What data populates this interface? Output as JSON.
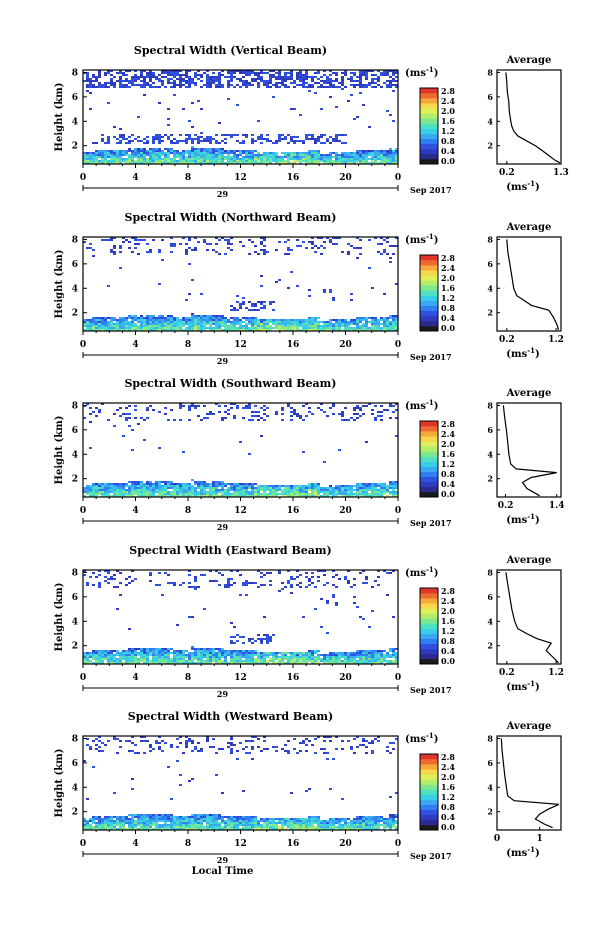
{
  "figure": {
    "xlabel": "Local Time",
    "date_label": "Sep 2017",
    "day_label": "29",
    "ylabel": "Height (km)",
    "unit_label": "(ms",
    "unit_exp": "-1",
    "avg_title": "Average",
    "avg_xlabel": "(ms",
    "avg_xlabel_exp": "-1"
  },
  "colorbar": {
    "ticks": [
      "2.8",
      "2.4",
      "2.0",
      "1.6",
      "1.2",
      "0.8",
      "0.4",
      "0.0"
    ],
    "colors": [
      "#1a1a1a",
      "#2b2b8f",
      "#2f3bbf",
      "#3050e0",
      "#2f7ff0",
      "#39a9f2",
      "#36cfe6",
      "#4fe0c0",
      "#7fe88f",
      "#b3ee6a",
      "#dff05a",
      "#f7d84a",
      "#f7a83a",
      "#ef6a2e",
      "#e0352a"
    ]
  },
  "chart_data": [
    {
      "type": "heatmap",
      "title": "Spectral Width (Vertical Beam)",
      "xlabel": "Local Time",
      "ylabel": "Height (km)",
      "x_ticks": [
        "0",
        "4",
        "8",
        "12",
        "16",
        "20",
        "0"
      ],
      "y_ticks": [
        "8",
        "6",
        "4",
        "2"
      ],
      "xlim": [
        0,
        24
      ],
      "ylim": [
        0.5,
        8.2
      ],
      "colorbar_unit": "ms-1",
      "colorbar_range": [
        0.0,
        2.8
      ],
      "average_profile": {
        "xlim": [
          0.0,
          1.3
        ],
        "x_ticks": [
          "0.2",
          "1.3"
        ],
        "y_ticks": [
          "8",
          "6",
          "4",
          "2"
        ],
        "points": [
          [
            0.18,
            8.0
          ],
          [
            0.2,
            7.2
          ],
          [
            0.21,
            6.4
          ],
          [
            0.24,
            5.6
          ],
          [
            0.25,
            4.8
          ],
          [
            0.28,
            4.0
          ],
          [
            0.3,
            3.6
          ],
          [
            0.34,
            3.2
          ],
          [
            0.42,
            2.8
          ],
          [
            0.6,
            2.4
          ],
          [
            0.78,
            2.0
          ],
          [
            0.92,
            1.6
          ],
          [
            1.05,
            1.2
          ],
          [
            1.18,
            0.8
          ],
          [
            1.28,
            0.6
          ]
        ]
      }
    },
    {
      "type": "heatmap",
      "title": "Spectral Width (Northward Beam)",
      "xlabel": "Local Time",
      "ylabel": "Height (km)",
      "x_ticks": [
        "0",
        "4",
        "8",
        "12",
        "16",
        "20",
        "0"
      ],
      "y_ticks": [
        "8",
        "6",
        "4",
        "2"
      ],
      "xlim": [
        0,
        24
      ],
      "ylim": [
        0.5,
        8.2
      ],
      "colorbar_unit": "ms-1",
      "colorbar_range": [
        0.0,
        2.8
      ],
      "average_profile": {
        "xlim": [
          0.0,
          1.3
        ],
        "x_ticks": [
          "0.2",
          "1.2"
        ],
        "y_ticks": [
          "8",
          "6",
          "4",
          "2"
        ],
        "points": [
          [
            0.2,
            8.0
          ],
          [
            0.22,
            7.0
          ],
          [
            0.26,
            6.0
          ],
          [
            0.3,
            5.0
          ],
          [
            0.34,
            4.0
          ],
          [
            0.4,
            3.4
          ],
          [
            0.55,
            3.0
          ],
          [
            0.7,
            2.6
          ],
          [
            1.05,
            2.2
          ],
          [
            1.15,
            1.6
          ],
          [
            1.22,
            1.0
          ],
          [
            1.25,
            0.6
          ]
        ]
      }
    },
    {
      "type": "heatmap",
      "title": "Spectral Width (Southward Beam)",
      "xlabel": "Local Time",
      "ylabel": "Height (km)",
      "x_ticks": [
        "0",
        "4",
        "8",
        "12",
        "16",
        "20",
        "0"
      ],
      "y_ticks": [
        "8",
        "6",
        "4",
        "2"
      ],
      "xlim": [
        0,
        24
      ],
      "ylim": [
        0.5,
        8.2
      ],
      "colorbar_unit": "ms-1",
      "colorbar_range": [
        0.0,
        2.8
      ],
      "average_profile": {
        "xlim": [
          0.0,
          1.5
        ],
        "x_ticks": [
          "0.2",
          "1.4"
        ],
        "y_ticks": [
          "8",
          "6",
          "4",
          "2"
        ],
        "points": [
          [
            0.15,
            8.0
          ],
          [
            0.18,
            7.0
          ],
          [
            0.22,
            6.0
          ],
          [
            0.25,
            5.0
          ],
          [
            0.28,
            4.0
          ],
          [
            0.32,
            3.2
          ],
          [
            0.45,
            2.8
          ],
          [
            1.4,
            2.5
          ],
          [
            0.8,
            2.1
          ],
          [
            0.6,
            1.7
          ],
          [
            0.7,
            1.2
          ],
          [
            0.9,
            0.8
          ],
          [
            1.0,
            0.6
          ]
        ]
      }
    },
    {
      "type": "heatmap",
      "title": "Spectral Width (Eastward Beam)",
      "xlabel": "Local Time",
      "ylabel": "Height (km)",
      "x_ticks": [
        "0",
        "4",
        "8",
        "12",
        "16",
        "20",
        "0"
      ],
      "y_ticks": [
        "8",
        "6",
        "4",
        "2"
      ],
      "xlim": [
        0,
        24
      ],
      "ylim": [
        0.5,
        8.2
      ],
      "colorbar_unit": "ms-1",
      "colorbar_range": [
        0.0,
        2.8
      ],
      "average_profile": {
        "xlim": [
          0.0,
          1.3
        ],
        "x_ticks": [
          "0.2",
          "1.2"
        ],
        "y_ticks": [
          "8",
          "6",
          "4",
          "2"
        ],
        "points": [
          [
            0.18,
            8.0
          ],
          [
            0.22,
            7.0
          ],
          [
            0.26,
            6.0
          ],
          [
            0.3,
            5.0
          ],
          [
            0.36,
            4.0
          ],
          [
            0.42,
            3.4
          ],
          [
            0.6,
            3.0
          ],
          [
            0.8,
            2.6
          ],
          [
            1.1,
            2.2
          ],
          [
            1.0,
            1.6
          ],
          [
            1.1,
            1.2
          ],
          [
            1.2,
            0.8
          ],
          [
            1.25,
            0.6
          ]
        ]
      }
    },
    {
      "type": "heatmap",
      "title": "Spectral Width (Westward Beam)",
      "xlabel": "Local Time",
      "ylabel": "Height (km)",
      "x_ticks": [
        "0",
        "4",
        "8",
        "12",
        "16",
        "20",
        "0"
      ],
      "y_ticks": [
        "8",
        "6",
        "4",
        "2"
      ],
      "xlim": [
        0,
        24
      ],
      "ylim": [
        0.5,
        8.2
      ],
      "colorbar_unit": "ms-1",
      "colorbar_range": [
        0.0,
        2.8
      ],
      "average_profile": {
        "xlim": [
          0.0,
          1.5
        ],
        "x_ticks": [
          "0",
          "1"
        ],
        "y_ticks": [
          "8",
          "6",
          "4",
          "2"
        ],
        "points": [
          [
            0.1,
            8.0
          ],
          [
            0.12,
            7.0
          ],
          [
            0.15,
            6.0
          ],
          [
            0.18,
            5.0
          ],
          [
            0.22,
            4.0
          ],
          [
            0.25,
            3.3
          ],
          [
            0.4,
            2.9
          ],
          [
            1.45,
            2.6
          ],
          [
            1.2,
            2.2
          ],
          [
            1.0,
            1.8
          ],
          [
            0.9,
            1.4
          ],
          [
            1.1,
            1.0
          ],
          [
            1.3,
            0.7
          ]
        ]
      }
    }
  ]
}
